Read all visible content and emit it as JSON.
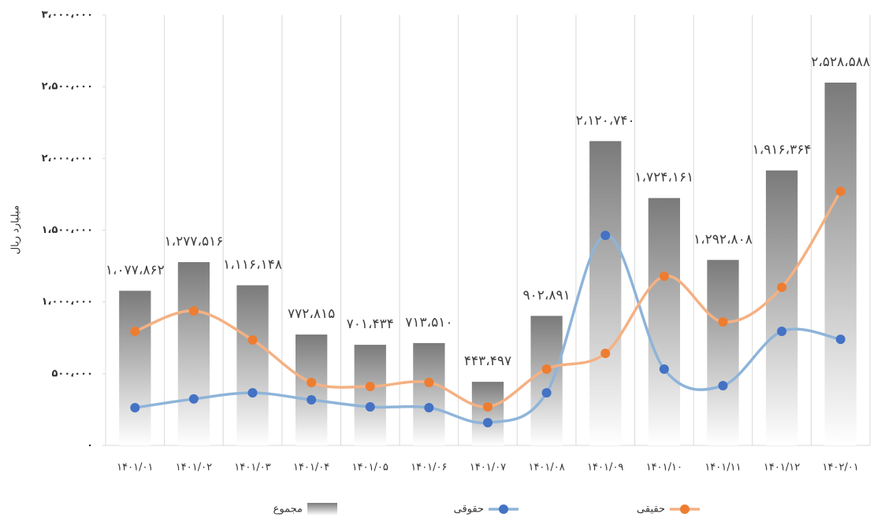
{
  "chart_data": {
    "type": "bar_line",
    "y_axis_label": "میلیارد ریال",
    "categories": [
      "۱۴۰۱/۰۱",
      "۱۴۰۱/۰۲",
      "۱۴۰۱/۰۳",
      "۱۴۰۱/۰۴",
      "۱۴۰۱/۰۵",
      "۱۴۰۱/۰۶",
      "۱۴۰۱/۰۷",
      "۱۴۰۱/۰۸",
      "۱۴۰۱/۰۹",
      "۱۴۰۱/۱۰",
      "۱۴۰۱/۱۱",
      "۱۴۰۱/۱۲",
      "۱۴۰۲/۰۱"
    ],
    "series": [
      {
        "name": "مجموع",
        "kind": "bar",
        "color": "#7f7f7f",
        "values": [
          1077862,
          1277516,
          1116148,
          772815,
          701434,
          713510,
          443497,
          902891,
          2120740,
          1724161,
          1292808,
          1916364,
          2528588
        ],
        "value_labels": [
          "۱،۰۷۷،۸۶۲",
          "۱،۲۷۷،۵۱۶",
          "۱،۱۱۶،۱۴۸",
          "۷۷۲،۸۱۵",
          "۷۰۱،۴۳۴",
          "۷۱۳،۵۱۰",
          "۴۴۳،۴۹۷",
          "۹۰۲،۸۹۱",
          "۲،۱۲۰،۷۴۰",
          "۱،۷۲۴،۱۶۱",
          "۱،۲۹۲،۸۰۸",
          "۱،۹۱۶،۳۶۴",
          "۲،۵۲۸،۵۸۸"
        ]
      },
      {
        "name": "حقوقی",
        "kind": "line",
        "color": "#4472c4",
        "line_color": "#8fb4d9",
        "values": [
          263000,
          324000,
          367000,
          318000,
          269000,
          263000,
          159000,
          367000,
          1464000,
          532000,
          417000,
          795000,
          740000
        ]
      },
      {
        "name": "حقیقی",
        "kind": "line",
        "color": "#ed7d31",
        "line_color": "#f4b183",
        "values": [
          795000,
          938000,
          735000,
          439000,
          411000,
          439000,
          269000,
          532000,
          642000,
          1179000,
          861000,
          1102000,
          1771000
        ]
      }
    ],
    "ylim": [
      0,
      3000000
    ],
    "yticks": [
      {
        "value": 0,
        "label": "۰"
      },
      {
        "value": 500000,
        "label": "۵۰۰،۰۰۰"
      },
      {
        "value": 1000000,
        "label": "۱،۰۰۰،۰۰۰"
      },
      {
        "value": 1500000,
        "label": "۱،۵۰۰،۰۰۰"
      },
      {
        "value": 2000000,
        "label": "۲،۰۰۰،۰۰۰"
      },
      {
        "value": 2500000,
        "label": "۲،۵۰۰،۰۰۰"
      },
      {
        "value": 3000000,
        "label": "۳،۰۰۰،۰۰۰"
      }
    ],
    "legend": "bottom"
  }
}
